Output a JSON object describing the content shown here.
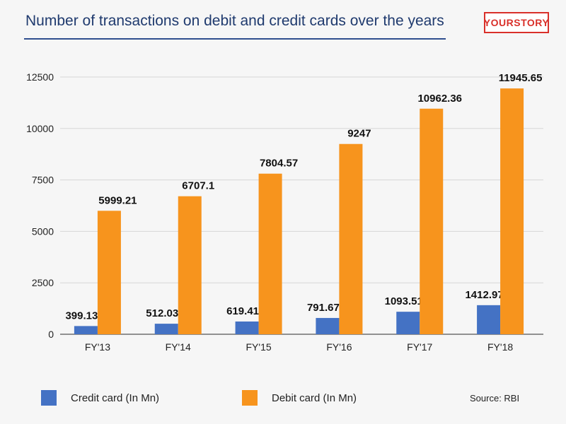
{
  "header": {
    "title": "Number of transactions on debit and credit cards over the years",
    "logo_text": "YOURSTORY"
  },
  "chart_data": {
    "type": "bar",
    "title": "Number of transactions on debit and credit cards over the years",
    "xlabel": "",
    "ylabel": "",
    "categories": [
      "FY'13",
      "FY'14",
      "FY'15",
      "FY'16",
      "FY'17",
      "FY'18"
    ],
    "series": [
      {
        "name": "Credit card (In Mn)",
        "color": "#4472c4",
        "values": [
          399.13,
          512.03,
          619.41,
          791.67,
          1093.51,
          1412.97
        ],
        "labels": [
          "399.13",
          "512.03",
          "619.41",
          "791.67",
          "1093.51",
          "1412.97"
        ]
      },
      {
        "name": "Debit card (In Mn)",
        "color": "#f7941d",
        "values": [
          5999.21,
          6707.1,
          7804.57,
          9247,
          10962.36,
          11945.65
        ],
        "labels": [
          "5999.21",
          "6707.1",
          "7804.57",
          "9247",
          "10962.36",
          "11945.65"
        ]
      }
    ],
    "ylim": [
      0,
      12500
    ],
    "yticks": [
      0,
      2500,
      5000,
      7500,
      10000,
      12500
    ],
    "ytick_labels": [
      "0",
      "2500",
      "5000",
      "7500",
      "10000",
      "12500"
    ],
    "grid": true,
    "legend_position": "bottom-left"
  },
  "legend": {
    "credit_label": "Credit card (In Mn)",
    "debit_label": "Debit card (In Mn)"
  },
  "footer": {
    "source": "Source: RBI"
  }
}
